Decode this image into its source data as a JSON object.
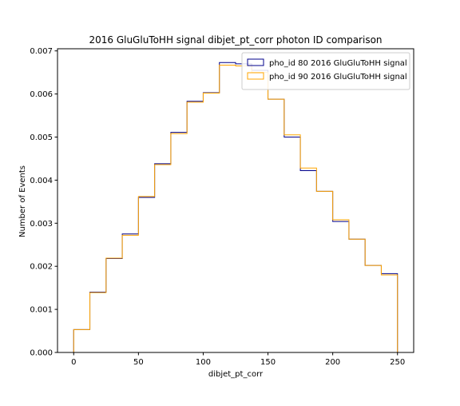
{
  "chart_data": {
    "type": "step-histogram",
    "title": "2016 GluGluToHH signal dibjet_pt_corr photon ID comparison",
    "xlabel": "dibjet_pt_corr",
    "ylabel": "Number of Events",
    "xlim": [
      -12.5,
      262.5
    ],
    "ylim": [
      0,
      0.00705
    ],
    "xticks": [
      0,
      50,
      100,
      150,
      200,
      250
    ],
    "yticks": [
      0.0,
      0.001,
      0.002,
      0.003,
      0.004,
      0.005,
      0.006,
      0.007
    ],
    "ytick_labels": [
      "0.000",
      "0.001",
      "0.002",
      "0.003",
      "0.004",
      "0.005",
      "0.006",
      "0.007"
    ],
    "grid": false,
    "legend_position": "upper right",
    "bin_edges": [
      0,
      12.5,
      25,
      37.5,
      50,
      62.5,
      75,
      87.5,
      100,
      112.5,
      125,
      137.5,
      150,
      162.5,
      175,
      187.5,
      200,
      212.5,
      225,
      237.5,
      250
    ],
    "series": [
      {
        "name": "pho_id 80 2016 GluGluToHH signal",
        "color": "#00008b",
        "values": [
          0.00053,
          0.0014,
          0.00218,
          0.00275,
          0.0036,
          0.00438,
          0.00511,
          0.00583,
          0.00603,
          0.00673,
          0.0067,
          0.00655,
          0.00588,
          0.005,
          0.00422,
          0.00374,
          0.00304,
          0.00263,
          0.00202,
          0.00183
        ]
      },
      {
        "name": "pho_id 90 2016 GluGluToHH signal",
        "color": "#ffa500",
        "values": [
          0.00053,
          0.00139,
          0.00219,
          0.00272,
          0.00362,
          0.00436,
          0.00508,
          0.00581,
          0.00602,
          0.00667,
          0.00665,
          0.0065,
          0.00588,
          0.00505,
          0.00428,
          0.00374,
          0.00308,
          0.00263,
          0.00202,
          0.0018
        ]
      }
    ]
  }
}
